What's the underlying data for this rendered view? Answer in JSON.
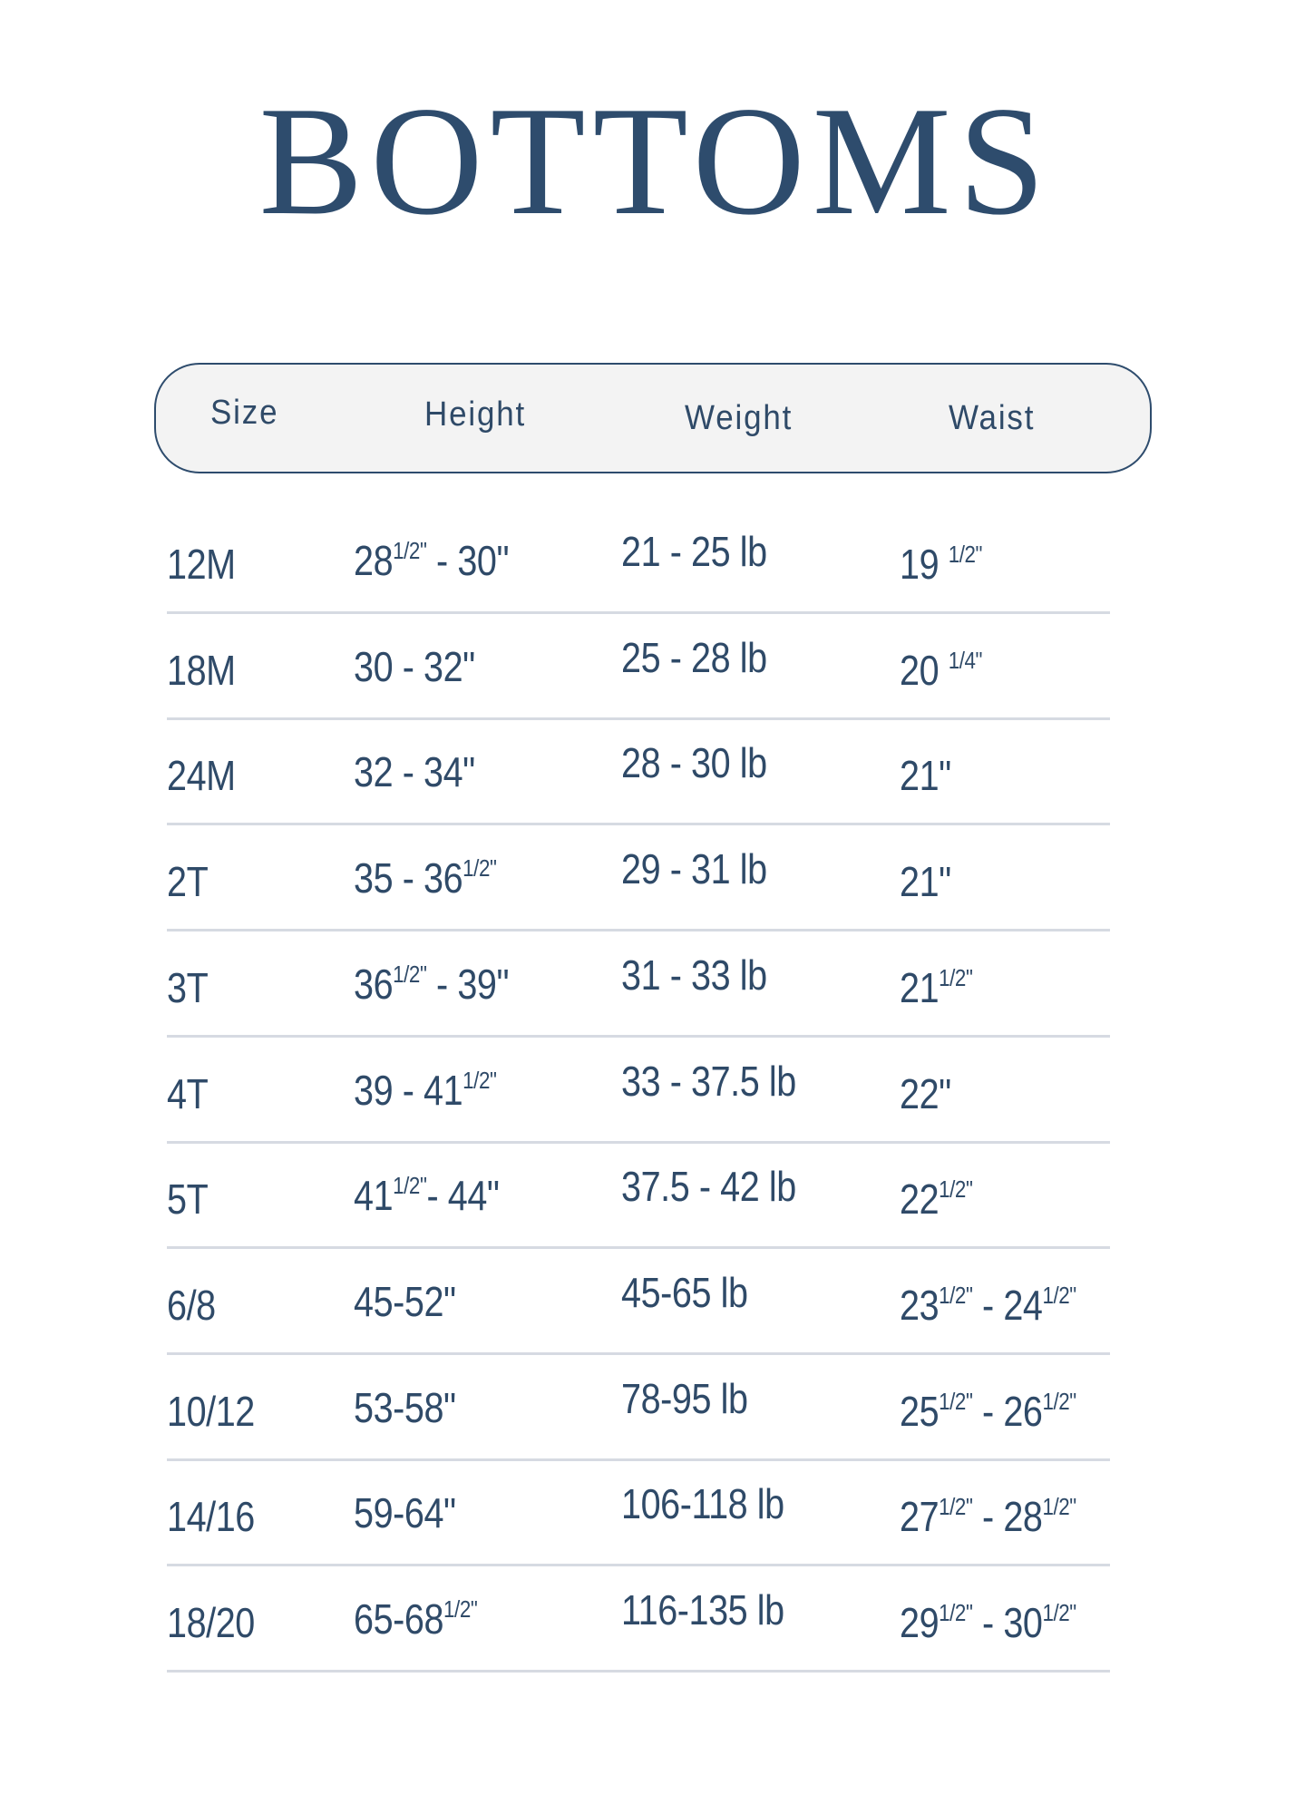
{
  "title": "BOTTOMS",
  "colors": {
    "text": "#2e4c6d",
    "header_bg": "#f3f3f3",
    "divider": "#d6dae2"
  },
  "columns": [
    "Size",
    "Height",
    "Weight",
    "Waist"
  ],
  "rows": [
    {
      "size": "12M",
      "height": [
        {
          "t": "28",
          "s": "1/2\""
        },
        {
          "t": " - 30\""
        }
      ],
      "weight": "21 - 25 lb",
      "waist": [
        {
          "t": "19 ",
          "s": "1/2\""
        }
      ]
    },
    {
      "size": "18M",
      "height": [
        {
          "t": "30 - 32\""
        }
      ],
      "weight": "25 - 28 lb",
      "waist": [
        {
          "t": "20 ",
          "s": "1/4\""
        }
      ]
    },
    {
      "size": "24M",
      "height": [
        {
          "t": "32 - 34\""
        }
      ],
      "weight": "28 - 30 lb",
      "waist": [
        {
          "t": "21\""
        }
      ]
    },
    {
      "size": "2T",
      "height": [
        {
          "t": "35 - 36",
          "s": "1/2\""
        }
      ],
      "weight": "29 - 31 lb",
      "waist": [
        {
          "t": "21\""
        }
      ]
    },
    {
      "size": "3T",
      "height": [
        {
          "t": "36",
          "s": "1/2\""
        },
        {
          "t": " - 39\""
        }
      ],
      "weight": "31 - 33 lb",
      "waist": [
        {
          "t": "21",
          "s": "1/2\""
        }
      ]
    },
    {
      "size": "4T",
      "height": [
        {
          "t": "39 - 41",
          "s": "1/2\""
        }
      ],
      "weight": "33 - 37.5 lb",
      "waist": [
        {
          "t": "22\""
        }
      ]
    },
    {
      "size": "5T",
      "height": [
        {
          "t": "41",
          "s": "1/2\""
        },
        {
          "t": "- 44\""
        }
      ],
      "weight": "37.5 - 42 lb",
      "waist": [
        {
          "t": "22",
          "s": "1/2\""
        }
      ]
    },
    {
      "size": "6/8",
      "height": [
        {
          "t": "45-52\""
        }
      ],
      "weight": "45-65 lb",
      "waist": [
        {
          "t": "23",
          "s": "1/2\""
        },
        {
          "t": " - 24",
          "s": "1/2\""
        }
      ]
    },
    {
      "size": "10/12",
      "height": [
        {
          "t": "53-58\""
        }
      ],
      "weight": "78-95 lb",
      "waist": [
        {
          "t": "25",
          "s": "1/2\""
        },
        {
          "t": " - 26",
          "s": "1/2\""
        }
      ]
    },
    {
      "size": "14/16",
      "height": [
        {
          "t": "59-64\""
        }
      ],
      "weight": "106-118 lb",
      "waist": [
        {
          "t": "27",
          "s": "1/2\""
        },
        {
          "t": " - 28",
          "s": "1/2\""
        }
      ]
    },
    {
      "size": "18/20",
      "height": [
        {
          "t": "65-68",
          "s": "1/2\""
        }
      ],
      "weight": "116-135 lb",
      "waist": [
        {
          "t": "29",
          "s": "1/2\""
        },
        {
          "t": " - 30",
          "s": "1/2\""
        }
      ]
    }
  ]
}
